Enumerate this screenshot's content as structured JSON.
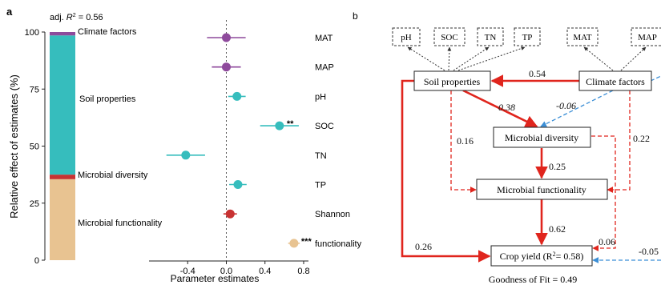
{
  "panel_a": {
    "label": "a",
    "adj_r2_prefix": "adj. ",
    "adj_r2_symbol": "R",
    "adj_r2_exp": "2",
    "adj_r2_suffix": " = 0.56",
    "colors": {
      "climate": "#8e4a9c",
      "soil": "#36bdbd",
      "microbial_diversity": "#c83232",
      "functionality": "#e8c391"
    }
  },
  "panel_b": {
    "label": "b",
    "boxes": {
      "ph": "pH",
      "soc": "SOC",
      "tn": "TN",
      "tp": "TP",
      "mat": "MAT",
      "map": "MAP",
      "soil": "Soil properties",
      "climate": "Climate factors",
      "microbial_diversity": "Microbial diversity",
      "microbial_functionality": "Microbial functionality",
      "crop_yield_prefix": "Crop yield (R",
      "crop_yield_exp": "2",
      "crop_yield_suffix": "= 0.58)"
    },
    "coefficients": {
      "climate_to_soil": "0.54",
      "soil_to_diversity": "0.38",
      "climate_to_diversity": "-0.06",
      "soil_to_functionality": "0.16",
      "climate_to_functionality": "0.22",
      "diversity_to_functionality": "0.25",
      "functionality_to_yield": "0.62",
      "soil_to_yield": "0.26",
      "diversity_to_yield": "0.06",
      "climate_to_yield": "-0.05"
    },
    "goodness_of_fit": "Goodness of Fit = 0.49",
    "colors": {
      "positive": "#e0251d",
      "negative": "#3c8fd6",
      "indicator": "#333333"
    }
  },
  "chart_data": [
    {
      "type": "bar",
      "stacked": true,
      "ylabel": "Relative effect of estimates (%)",
      "ylim": [
        0,
        100
      ],
      "yticks": [
        0,
        25,
        50,
        75,
        100
      ],
      "series": [
        {
          "name": "Microbial functionality",
          "values": [
            35.5
          ]
        },
        {
          "name": "Microbial diversity",
          "values": [
            2
          ]
        },
        {
          "name": "Soil properties",
          "values": [
            61
          ]
        },
        {
          "name": "Climate factors",
          "values": [
            1.5
          ]
        }
      ]
    },
    {
      "type": "scatter",
      "xlabel": "Parameter estimates",
      "xlim": [
        -0.8,
        0.85
      ],
      "xticks": [
        -0.4,
        0.0,
        0.4,
        0.8
      ],
      "xtick_labels": [
        "-0.4",
        "0.0",
        "0.4",
        "0.8"
      ],
      "categories": [
        "MAT",
        "MAP",
        "pH",
        "SOC",
        "TN",
        "TP",
        "Shannon",
        "functionality"
      ],
      "estimates": [
        0.0,
        0.0,
        0.11,
        0.55,
        -0.42,
        0.12,
        0.04,
        0.7
      ],
      "ci_low": [
        -0.2,
        -0.15,
        0.02,
        0.35,
        -0.62,
        0.03,
        -0.03,
        0.64
      ],
      "ci_high": [
        0.2,
        0.15,
        0.2,
        0.75,
        -0.22,
        0.21,
        0.11,
        0.76
      ],
      "groups": [
        "climate",
        "climate",
        "soil",
        "soil",
        "soil",
        "soil",
        "microbial_diversity",
        "functionality"
      ],
      "significance": [
        "",
        "",
        "",
        "**",
        "",
        "",
        "",
        "***"
      ],
      "reference_line": 0
    }
  ]
}
